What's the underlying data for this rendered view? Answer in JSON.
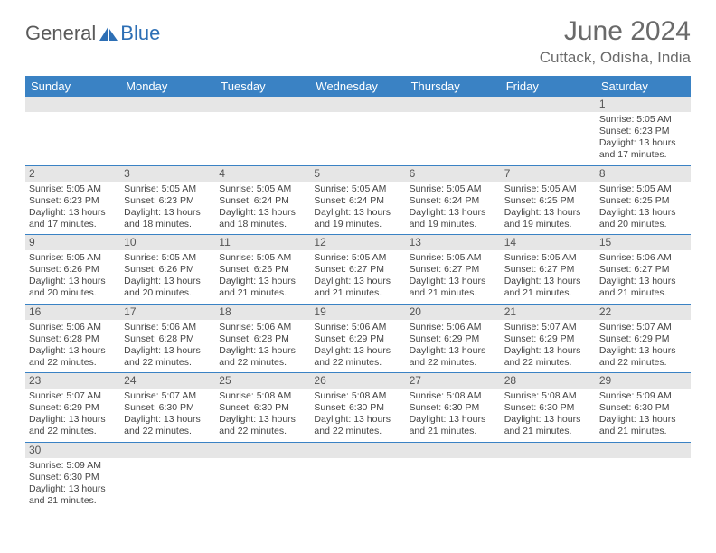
{
  "logo": {
    "text1": "General",
    "text2": "Blue"
  },
  "title": "June 2024",
  "location": "Cuttack, Odisha, India",
  "colors": {
    "header_bg": "#3a82c4",
    "header_fg": "#ffffff",
    "daynum_bg": "#e6e6e6",
    "rule": "#3a82c4",
    "text": "#444444",
    "title": "#6a6a6a"
  },
  "day_headers": [
    "Sunday",
    "Monday",
    "Tuesday",
    "Wednesday",
    "Thursday",
    "Friday",
    "Saturday"
  ],
  "weeks": [
    [
      null,
      null,
      null,
      null,
      null,
      null,
      {
        "n": "1",
        "sr": "5:05 AM",
        "ss": "6:23 PM",
        "dh": "13",
        "dm": "17"
      }
    ],
    [
      {
        "n": "2",
        "sr": "5:05 AM",
        "ss": "6:23 PM",
        "dh": "13",
        "dm": "17"
      },
      {
        "n": "3",
        "sr": "5:05 AM",
        "ss": "6:23 PM",
        "dh": "13",
        "dm": "18"
      },
      {
        "n": "4",
        "sr": "5:05 AM",
        "ss": "6:24 PM",
        "dh": "13",
        "dm": "18"
      },
      {
        "n": "5",
        "sr": "5:05 AM",
        "ss": "6:24 PM",
        "dh": "13",
        "dm": "19"
      },
      {
        "n": "6",
        "sr": "5:05 AM",
        "ss": "6:24 PM",
        "dh": "13",
        "dm": "19"
      },
      {
        "n": "7",
        "sr": "5:05 AM",
        "ss": "6:25 PM",
        "dh": "13",
        "dm": "19"
      },
      {
        "n": "8",
        "sr": "5:05 AM",
        "ss": "6:25 PM",
        "dh": "13",
        "dm": "20"
      }
    ],
    [
      {
        "n": "9",
        "sr": "5:05 AM",
        "ss": "6:26 PM",
        "dh": "13",
        "dm": "20"
      },
      {
        "n": "10",
        "sr": "5:05 AM",
        "ss": "6:26 PM",
        "dh": "13",
        "dm": "20"
      },
      {
        "n": "11",
        "sr": "5:05 AM",
        "ss": "6:26 PM",
        "dh": "13",
        "dm": "21"
      },
      {
        "n": "12",
        "sr": "5:05 AM",
        "ss": "6:27 PM",
        "dh": "13",
        "dm": "21"
      },
      {
        "n": "13",
        "sr": "5:05 AM",
        "ss": "6:27 PM",
        "dh": "13",
        "dm": "21"
      },
      {
        "n": "14",
        "sr": "5:05 AM",
        "ss": "6:27 PM",
        "dh": "13",
        "dm": "21"
      },
      {
        "n": "15",
        "sr": "5:06 AM",
        "ss": "6:27 PM",
        "dh": "13",
        "dm": "21"
      }
    ],
    [
      {
        "n": "16",
        "sr": "5:06 AM",
        "ss": "6:28 PM",
        "dh": "13",
        "dm": "22"
      },
      {
        "n": "17",
        "sr": "5:06 AM",
        "ss": "6:28 PM",
        "dh": "13",
        "dm": "22"
      },
      {
        "n": "18",
        "sr": "5:06 AM",
        "ss": "6:28 PM",
        "dh": "13",
        "dm": "22"
      },
      {
        "n": "19",
        "sr": "5:06 AM",
        "ss": "6:29 PM",
        "dh": "13",
        "dm": "22"
      },
      {
        "n": "20",
        "sr": "5:06 AM",
        "ss": "6:29 PM",
        "dh": "13",
        "dm": "22"
      },
      {
        "n": "21",
        "sr": "5:07 AM",
        "ss": "6:29 PM",
        "dh": "13",
        "dm": "22"
      },
      {
        "n": "22",
        "sr": "5:07 AM",
        "ss": "6:29 PM",
        "dh": "13",
        "dm": "22"
      }
    ],
    [
      {
        "n": "23",
        "sr": "5:07 AM",
        "ss": "6:29 PM",
        "dh": "13",
        "dm": "22"
      },
      {
        "n": "24",
        "sr": "5:07 AM",
        "ss": "6:30 PM",
        "dh": "13",
        "dm": "22"
      },
      {
        "n": "25",
        "sr": "5:08 AM",
        "ss": "6:30 PM",
        "dh": "13",
        "dm": "22"
      },
      {
        "n": "26",
        "sr": "5:08 AM",
        "ss": "6:30 PM",
        "dh": "13",
        "dm": "22"
      },
      {
        "n": "27",
        "sr": "5:08 AM",
        "ss": "6:30 PM",
        "dh": "13",
        "dm": "21"
      },
      {
        "n": "28",
        "sr": "5:08 AM",
        "ss": "6:30 PM",
        "dh": "13",
        "dm": "21"
      },
      {
        "n": "29",
        "sr": "5:09 AM",
        "ss": "6:30 PM",
        "dh": "13",
        "dm": "21"
      }
    ],
    [
      {
        "n": "30",
        "sr": "5:09 AM",
        "ss": "6:30 PM",
        "dh": "13",
        "dm": "21"
      },
      null,
      null,
      null,
      null,
      null,
      null
    ]
  ],
  "labels": {
    "sunrise": "Sunrise: ",
    "sunset": "Sunset: ",
    "daylight_pre": "Daylight: ",
    "hours": " hours",
    "and": "and ",
    "minutes": " minutes."
  }
}
